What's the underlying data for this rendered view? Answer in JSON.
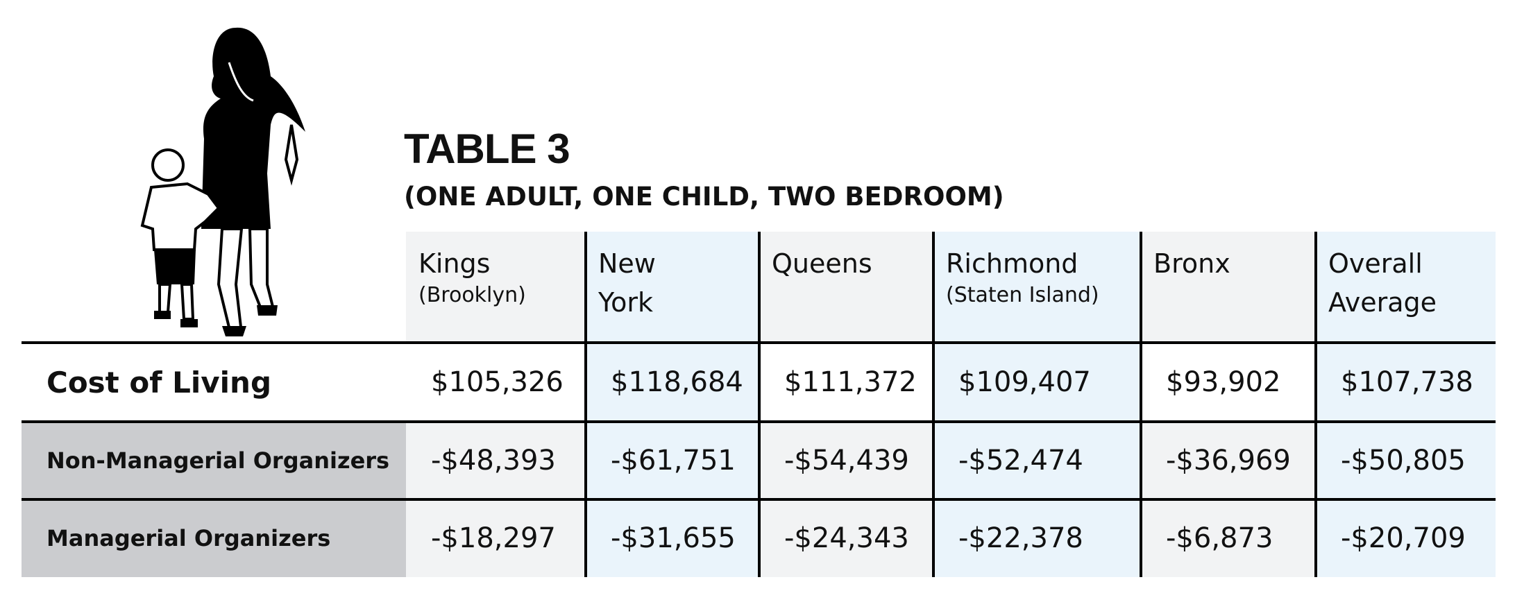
{
  "header": {
    "title": "TABLE 3",
    "subtitle": "(ONE ADULT, ONE CHILD, TWO BEDROOM)"
  },
  "table": {
    "columns": [
      {
        "name": "Kings",
        "note": "(Brooklyn)"
      },
      {
        "name": "New York"
      },
      {
        "name": "Queens"
      },
      {
        "name": "Richmond",
        "note": "(Staten Island)"
      },
      {
        "name": "Bronx"
      },
      {
        "name": "Overall Average"
      }
    ],
    "rows": [
      {
        "label": "Cost of Living",
        "cells": [
          "$105,326",
          "$118,684",
          "$111,372",
          "$109,407",
          "$93,902",
          "$107,738"
        ]
      },
      {
        "label": "Non-Managerial Organizers",
        "cells": [
          "-$48,393",
          "-$61,751",
          "-$54,439",
          "-$52,474",
          "-$36,969",
          "-$50,805"
        ]
      },
      {
        "label": "Managerial Organizers",
        "cells": [
          "-$18,297",
          "-$31,655",
          "-$24,343",
          "-$22,378",
          "-$6,873",
          "-$20,709"
        ]
      }
    ]
  }
}
